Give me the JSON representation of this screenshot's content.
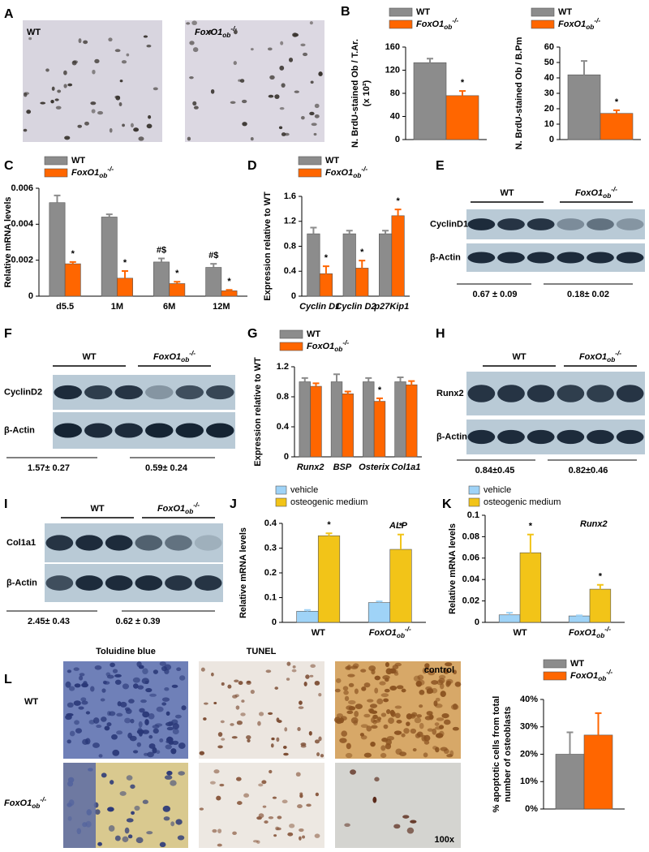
{
  "panel_letters": [
    "A",
    "B",
    "C",
    "D",
    "E",
    "F",
    "G",
    "H",
    "I",
    "J",
    "K",
    "L"
  ],
  "panels": {
    "A": {
      "labels": [
        "WT",
        "FoxO1ob-/-"
      ]
    },
    "E": {
      "groups": [
        "WT",
        "FoxO1ob-/-"
      ],
      "rows": [
        "CyclinD1",
        "β-Actin"
      ],
      "quantification": [
        "0.67 ± 0.09",
        "0.18± 0.02"
      ]
    },
    "F": {
      "groups": [
        "WT",
        "FoxO1ob-/-"
      ],
      "rows": [
        "CyclinD2",
        "β-Actin"
      ],
      "quantification": [
        "1.57± 0.27",
        "0.59± 0.24"
      ]
    },
    "H": {
      "groups": [
        "WT",
        "FoxO1ob-/-"
      ],
      "rows": [
        "Runx2",
        "β-Actin"
      ],
      "quantification": [
        "0.84±0.45",
        "0.82±0.46"
      ]
    },
    "I": {
      "groups": [
        "WT",
        "FoxO1ob-/-"
      ],
      "rows": [
        "Col1a1",
        "β-Actin"
      ],
      "quantification": [
        "2.45± 0.43",
        "0.62 ± 0.39"
      ]
    },
    "L": {
      "columns": [
        "Toluidine blue",
        "TUNEL"
      ],
      "rows": [
        "WT",
        "FoxO1ob-/-"
      ],
      "image_labels": [
        "control",
        "100x"
      ]
    }
  },
  "chart_data": [
    {
      "type": "bar",
      "ylabel": [
        "N. BrdU-stained Ob / T.Ar.",
        "(x 10²)"
      ],
      "ylim": [
        0,
        160
      ],
      "yticks": [
        0,
        40,
        80,
        120,
        160
      ],
      "categories": [
        null
      ],
      "series": [
        {
          "name": "WT",
          "color": "#8c8c8c",
          "values": [
            133
          ],
          "errors": [
            7
          ]
        },
        {
          "name": "FoxO1ob-/-",
          "color": "#ff6600",
          "values": [
            76
          ],
          "errors": [
            8
          ],
          "significance": [
            "*"
          ]
        }
      ]
    },
    {
      "type": "bar",
      "ylabel": [
        "N. BrdU-stained Ob / B.Pm"
      ],
      "ylim": [
        0,
        60
      ],
      "yticks": [
        0,
        10,
        20,
        30,
        40,
        50,
        60
      ],
      "categories": [
        null
      ],
      "series": [
        {
          "name": "WT",
          "color": "#8c8c8c",
          "values": [
            42
          ],
          "errors": [
            9
          ]
        },
        {
          "name": "FoxO1ob-/-",
          "color": "#ff6600",
          "values": [
            17
          ],
          "errors": [
            2
          ],
          "significance": [
            "*"
          ]
        }
      ]
    },
    {
      "type": "bar",
      "ylabel": [
        "Relative mRNA levels"
      ],
      "ylim": [
        0,
        0.006
      ],
      "yticks": [
        0,
        0.002,
        0.004,
        0.006
      ],
      "categories": [
        "d5.5",
        "1M",
        "6M",
        "12M"
      ],
      "series": [
        {
          "name": "WT",
          "color": "#8c8c8c",
          "values": [
            0.0052,
            0.0044,
            0.0019,
            0.0016
          ],
          "errors": [
            0.0004,
            0.00015,
            0.0002,
            0.0002
          ],
          "significance": [
            null,
            null,
            "#$",
            "#$"
          ]
        },
        {
          "name": "FoxO1ob-/-",
          "color": "#ff6600",
          "values": [
            0.0018,
            0.001,
            0.0007,
            0.0003
          ],
          "errors": [
            0.0001,
            0.0004,
            0.0001,
            5e-05
          ],
          "significance": [
            "*",
            "*",
            "*",
            "*"
          ]
        }
      ]
    },
    {
      "type": "bar",
      "ylabel": [
        "Expression relative to WT"
      ],
      "ylim": [
        0,
        1.6
      ],
      "yticks": [
        0,
        0.4,
        0.8,
        1.2,
        1.6
      ],
      "categories": [
        "Cyclin D1",
        "Cyclin D2",
        "p27Kip1"
      ],
      "series": [
        {
          "name": "WT",
          "color": "#8c8c8c",
          "values": [
            1.0,
            1.0,
            1.0
          ],
          "errors": [
            0.1,
            0.05,
            0.05
          ]
        },
        {
          "name": "FoxO1ob-/-",
          "color": "#ff6600",
          "values": [
            0.36,
            0.45,
            1.29
          ],
          "errors": [
            0.12,
            0.12,
            0.1
          ],
          "significance": [
            "*",
            "*",
            "*"
          ]
        }
      ]
    },
    {
      "type": "bar",
      "ylabel": [
        "Expression relative to WT"
      ],
      "ylim": [
        0,
        1.2
      ],
      "yticks": [
        0,
        0.4,
        0.8,
        1.2
      ],
      "categories": [
        "Runx2",
        "BSP",
        "Osterix",
        "Col1a1"
      ],
      "series": [
        {
          "name": "WT",
          "color": "#8c8c8c",
          "values": [
            1.0,
            1.0,
            1.0,
            1.0
          ],
          "errors": [
            0.05,
            0.1,
            0.05,
            0.06
          ]
        },
        {
          "name": "FoxO1ob-/-",
          "color": "#ff6600",
          "values": [
            0.94,
            0.84,
            0.74,
            0.96
          ],
          "errors": [
            0.04,
            0.03,
            0.04,
            0.05
          ],
          "significance": [
            null,
            null,
            "*",
            null
          ]
        }
      ]
    },
    {
      "type": "bar",
      "ylabel": [
        "Relative mRNA levels"
      ],
      "annotation": "ALP",
      "ylim": [
        0,
        0.4
      ],
      "yticks": [
        0,
        0.1,
        0.2,
        0.3,
        0.4
      ],
      "categories": [
        "WT",
        "FoxO1ob-/-"
      ],
      "series": [
        {
          "name": "vehicle",
          "color": "#9fd3f7",
          "values": [
            0.045,
            0.08
          ],
          "errors": [
            0.005,
            0.005
          ]
        },
        {
          "name": "osteogenic medium",
          "color": "#f2c418",
          "values": [
            0.35,
            0.295
          ],
          "errors": [
            0.01,
            0.06
          ],
          "significance": [
            "*",
            "*"
          ]
        }
      ]
    },
    {
      "type": "bar",
      "ylabel": [
        "Relative mRNA levels"
      ],
      "annotation": "Runx2",
      "ylim": [
        0,
        0.1
      ],
      "yticks": [
        0,
        0.02,
        0.04,
        0.06,
        0.08,
        0.1
      ],
      "categories": [
        "WT",
        "FoxO1ob-/-"
      ],
      "series": [
        {
          "name": "vehicle",
          "color": "#9fd3f7",
          "values": [
            0.007,
            0.006
          ],
          "errors": [
            0.002,
            0.0005
          ]
        },
        {
          "name": "osteogenic medium",
          "color": "#f2c418",
          "values": [
            0.065,
            0.031
          ],
          "errors": [
            0.017,
            0.004
          ],
          "significance": [
            "*",
            "*"
          ]
        }
      ]
    },
    {
      "type": "bar",
      "ylabel": [
        "% apoptotic cells from total",
        "number of osteoblasts"
      ],
      "ylim": [
        0,
        40
      ],
      "yticks": [
        {
          "value": 0,
          "label": "0%"
        },
        {
          "value": 10,
          "label": "10%"
        },
        {
          "value": 20,
          "label": "20%"
        },
        {
          "value": 30,
          "label": "30%"
        },
        {
          "value": 40,
          "label": "40%"
        }
      ],
      "categories": [
        null
      ],
      "series": [
        {
          "name": "WT",
          "color": "#8c8c8c",
          "values": [
            20
          ],
          "errors": [
            8
          ]
        },
        {
          "name": "FoxO1ob-/-",
          "color": "#ff6600",
          "values": [
            27
          ],
          "errors": [
            8
          ]
        }
      ]
    }
  ]
}
